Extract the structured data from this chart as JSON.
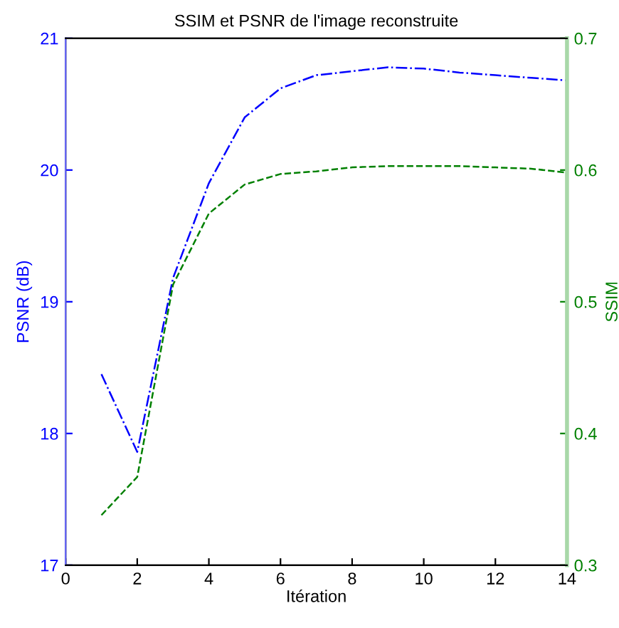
{
  "chart_data": {
    "type": "line",
    "title": "SSIM et PSNR de l'image reconstruite",
    "xlabel": "Itération",
    "ylabel": "PSNR (dB)",
    "y2label": "SSIM",
    "x": [
      1,
      2,
      3,
      4,
      5,
      6,
      7,
      8,
      9,
      10,
      11,
      12,
      13,
      14
    ],
    "series": [
      {
        "color": "#0000ff",
        "line_style": "dashdot",
        "values": [
          18.45,
          17.86,
          19.18,
          19.9,
          20.4,
          20.62,
          20.72,
          20.75,
          20.78,
          20.77,
          20.74,
          20.72,
          20.7,
          20.68
        ]
      },
      {
        "color": "#008000",
        "line_style": "dashed",
        "axis": "y2",
        "values": [
          0.338,
          0.367,
          0.513,
          0.567,
          0.589,
          0.597,
          0.599,
          0.602,
          0.603,
          0.603,
          0.603,
          0.602,
          0.601,
          0.598
        ]
      }
    ],
    "xlim": [
      0,
      14
    ],
    "xticks": [
      0,
      2,
      4,
      6,
      8,
      10,
      12,
      14
    ],
    "ylim": [
      17,
      21
    ],
    "yticks": [
      17,
      18,
      19,
      20,
      21
    ],
    "y2lim": [
      0.3,
      0.7
    ],
    "y2ticks": [
      0.3,
      0.4,
      0.5,
      0.6,
      0.7
    ],
    "grid": false,
    "marker": "none"
  }
}
